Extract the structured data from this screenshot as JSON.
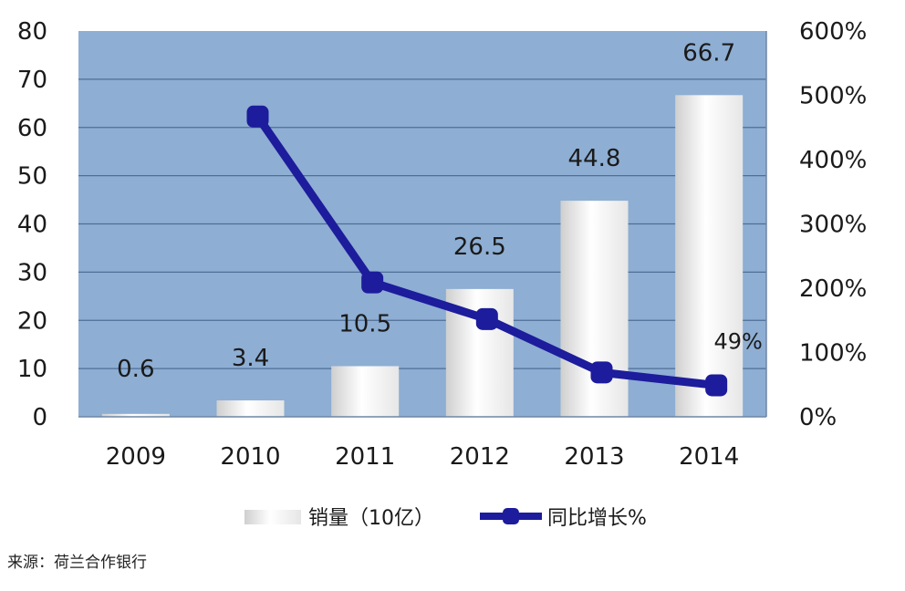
{
  "chart_data": {
    "type": "bar",
    "categories": [
      "2009",
      "2010",
      "2011",
      "2012",
      "2013",
      "2014"
    ],
    "series": [
      {
        "name": "销量（10亿）",
        "kind": "bar",
        "axis": "left",
        "values": [
          0.6,
          3.4,
          10.5,
          26.5,
          44.8,
          66.7
        ],
        "labels": [
          "0.6",
          "3.4",
          "10.5",
          "26.5",
          "44.8",
          "66.7"
        ]
      },
      {
        "name": "同比增长%",
        "kind": "line",
        "axis": "right",
        "values": [
          null,
          467,
          209,
          152,
          69,
          49
        ],
        "labels": [
          null,
          null,
          null,
          null,
          null,
          "49%"
        ]
      }
    ],
    "y_left": {
      "lim": [
        0,
        80
      ],
      "ticks": [
        "0",
        "10",
        "20",
        "30",
        "40",
        "50",
        "60",
        "70",
        "80"
      ]
    },
    "y_right": {
      "lim": [
        0,
        600
      ],
      "ticks": [
        "0%",
        "100%",
        "200%",
        "300%",
        "400%",
        "500%",
        "600%"
      ]
    },
    "grid": true,
    "legend_position": "bottom",
    "colors": {
      "plot_bg": "#8EAED3",
      "bar_light": "#FFFFFF",
      "bar_shade": "#CFCFCF",
      "line": "#1C1C9C",
      "grid": "#4F6E96",
      "text": "#1A1A1A"
    }
  },
  "source_note": "来源：荷兰合作银行"
}
